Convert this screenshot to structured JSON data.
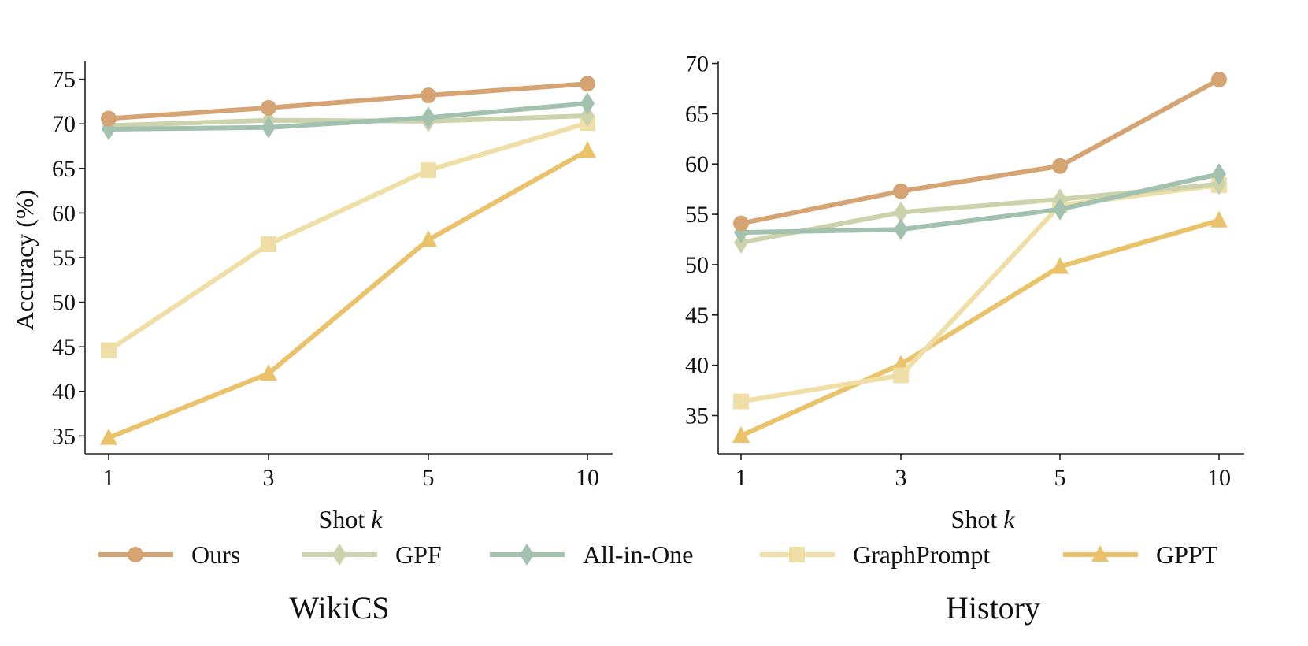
{
  "figure": {
    "ylabel": "Accuracy (%)",
    "xlabel_prefix": "Shot ",
    "xlabel_var": "k"
  },
  "legend": [
    {
      "name": "Ours",
      "color": "#D6A473",
      "marker": "circle"
    },
    {
      "name": "GPF",
      "color": "#CCD3AC",
      "marker": "diamond"
    },
    {
      "name": "All-in-One",
      "color": "#A2C2AF",
      "marker": "diamond"
    },
    {
      "name": "GraphPrompt",
      "color": "#EFDFA6",
      "marker": "square"
    },
    {
      "name": "GPPT",
      "color": "#EAC26A",
      "marker": "triangle"
    }
  ],
  "chart_data": [
    {
      "type": "line",
      "title": "WikiCS",
      "xlabel": "Shot k",
      "ylabel": "Accuracy (%)",
      "categories": [
        "1",
        "3",
        "5",
        "10"
      ],
      "ylim": [
        33,
        77
      ],
      "yticks": [
        35,
        40,
        45,
        50,
        55,
        60,
        65,
        70,
        75
      ],
      "series": [
        {
          "name": "GPPT",
          "values": [
            34.8,
            42.0,
            57.0,
            67.0
          ]
        },
        {
          "name": "GraphPrompt",
          "values": [
            44.6,
            56.5,
            64.8,
            70.1
          ]
        },
        {
          "name": "GPF",
          "values": [
            69.8,
            70.4,
            70.3,
            70.9
          ]
        },
        {
          "name": "All-in-One",
          "values": [
            69.4,
            69.6,
            70.7,
            72.3
          ]
        },
        {
          "name": "Ours",
          "values": [
            70.6,
            71.8,
            73.2,
            74.5
          ]
        }
      ]
    },
    {
      "type": "line",
      "title": "History",
      "xlabel": "Shot k",
      "ylabel": "",
      "categories": [
        "1",
        "3",
        "5",
        "10"
      ],
      "ylim": [
        31.2,
        70.2
      ],
      "yticks": [
        35,
        40,
        45,
        50,
        55,
        60,
        65,
        70
      ],
      "series": [
        {
          "name": "GPPT",
          "values": [
            33.0,
            40.1,
            49.8,
            54.4
          ]
        },
        {
          "name": "GraphPrompt",
          "values": [
            36.4,
            39.0,
            55.9,
            57.9
          ]
        },
        {
          "name": "GPF",
          "values": [
            52.2,
            55.2,
            56.5,
            58.0
          ]
        },
        {
          "name": "All-in-One",
          "values": [
            53.2,
            53.5,
            55.5,
            59.0
          ]
        },
        {
          "name": "Ours",
          "values": [
            54.1,
            57.3,
            59.8,
            68.4
          ]
        }
      ]
    }
  ]
}
